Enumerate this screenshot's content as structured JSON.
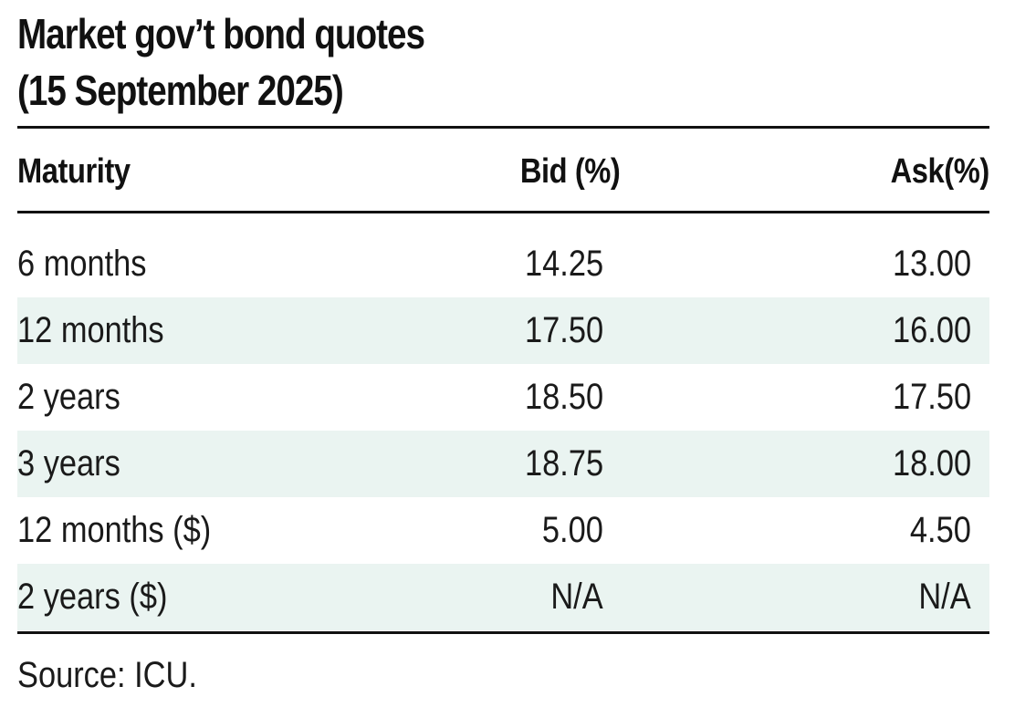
{
  "title": {
    "line1": "Market gov’t bond quotes",
    "line2": "(15 September 2025)"
  },
  "table": {
    "headers": {
      "maturity": "Maturity",
      "bid": "Bid (%)",
      "ask": "Ask(%)"
    },
    "rows": [
      {
        "maturity": "6 months",
        "bid": "14.25",
        "ask": "13.00"
      },
      {
        "maturity": "12 months",
        "bid": "17.50",
        "ask": "16.00"
      },
      {
        "maturity": "2 years",
        "bid": "18.50",
        "ask": "17.50"
      },
      {
        "maturity": "3 years",
        "bid": "18.75",
        "ask": "18.00"
      },
      {
        "maturity": "12 months ($)",
        "bid": "5.00",
        "ask": "4.50"
      },
      {
        "maturity": "2 years ($)",
        "bid": "N/A",
        "ask": "N/A"
      }
    ]
  },
  "source": "Source: ICU.",
  "colors": {
    "text": "#111111",
    "row_shade": "#eaf4f1",
    "rule": "#111111"
  }
}
